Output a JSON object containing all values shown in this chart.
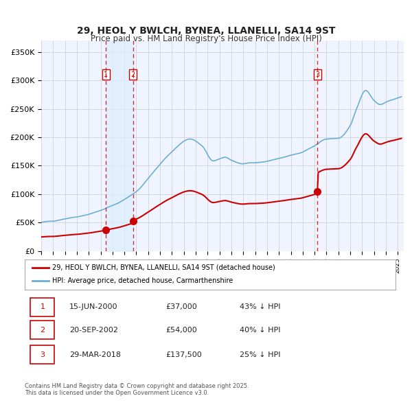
{
  "title": "29, HEOL Y BWLCH, BYNEA, LLANELLI, SA14 9ST",
  "subtitle": "Price paid vs. HM Land Registry's House Price Index (HPI)",
  "ylim": [
    0,
    370000
  ],
  "yticks": [
    0,
    50000,
    100000,
    150000,
    200000,
    250000,
    300000,
    350000
  ],
  "ytick_labels": [
    "£0",
    "£50K",
    "£100K",
    "£150K",
    "£200K",
    "£250K",
    "£300K",
    "£350K"
  ],
  "sale_dates_num": [
    2000.458,
    2002.72,
    2018.24
  ],
  "sale_prices": [
    37000,
    54000,
    137500
  ],
  "sale_labels": [
    "1",
    "2",
    "3"
  ],
  "legend_line1": "29, HEOL Y BWLCH, BYNEA, LLANELLI, SA14 9ST (detached house)",
  "legend_line2": "HPI: Average price, detached house, Carmarthenshire",
  "table_rows": [
    [
      "1",
      "15-JUN-2000",
      "£37,000",
      "43% ↓ HPI"
    ],
    [
      "2",
      "20-SEP-2002",
      "£54,000",
      "40% ↓ HPI"
    ],
    [
      "3",
      "29-MAR-2018",
      "£137,500",
      "25% ↓ HPI"
    ]
  ],
  "footer": "Contains HM Land Registry data © Crown copyright and database right 2025.\nThis data is licensed under the Open Government Licence v3.0.",
  "hpi_color": "#6baed6",
  "price_color": "#cc0000",
  "shade_color": "#ddeeff",
  "dashed_color": "#cc0000",
  "grid_color": "#cccccc",
  "background_color": "#f0f4ff",
  "plot_bg_color": "#f0f4ff"
}
